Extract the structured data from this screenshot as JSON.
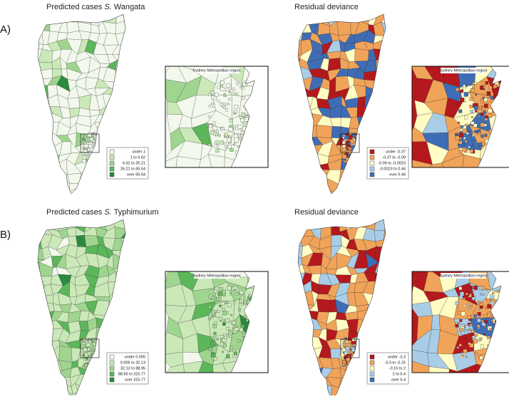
{
  "panels": [
    {
      "label": "A)",
      "maps": [
        {
          "title": {
            "text": "Predicted cases",
            "genus": "S.",
            "serovar": "Wangata"
          },
          "inset_title": "Sydney Metropolitan region",
          "legend": [
            {
              "label": "under 1",
              "color": "#f2f9ec"
            },
            {
              "label": "1 to 6.62",
              "color": "#cbe8b9"
            },
            {
              "label": "6.62 to 26.21",
              "color": "#9fd58f"
            },
            {
              "label": "26.21 to 65.54",
              "color": "#5cb65a"
            },
            {
              "label": "over 65.54",
              "color": "#2a8a3e"
            }
          ]
        },
        {
          "title": {
            "text": "Residual deviance"
          },
          "inset_title": "Sydney Metropolitan region",
          "legend": [
            {
              "label": "under -0.37",
              "color": "#b5191d"
            },
            {
              "label": "-0.37 to -0.09",
              "color": "#f0a45a"
            },
            {
              "label": "-0.09 to -0.0023",
              "color": "#fffcc4"
            },
            {
              "label": "-0.0023 to 0.44",
              "color": "#a9cde6"
            },
            {
              "label": "over 0.44",
              "color": "#3f6db5"
            }
          ]
        }
      ]
    },
    {
      "label": "B)",
      "maps": [
        {
          "title": {
            "text": "Predicted cases",
            "genus": "S.",
            "serovar": "Typhimurium"
          },
          "inset_title": "Sydney Metropolitan region",
          "legend": [
            {
              "label": "under 0.005",
              "color": "#f2f9ec"
            },
            {
              "label": "0.005 to 32.13",
              "color": "#cbe8b9"
            },
            {
              "label": "32.13 to 88.95",
              "color": "#9fd58f"
            },
            {
              "label": "88.95 to 315.77",
              "color": "#5cb65a"
            },
            {
              "label": "over 315.77",
              "color": "#2a8a3e"
            }
          ]
        },
        {
          "title": {
            "text": "Residual deviance"
          },
          "inset_title": "Sydney Metropolitan region",
          "legend": [
            {
              "label": "under -3.3",
              "color": "#b5191d"
            },
            {
              "label": "-3.3 to -0.15",
              "color": "#f0a45a"
            },
            {
              "label": "-0.15 to 2",
              "color": "#fffcc4"
            },
            {
              "label": "2 to 6.4",
              "color": "#a9cde6"
            },
            {
              "label": "over 6.4",
              "color": "#3f6db5"
            }
          ]
        }
      ]
    }
  ]
}
